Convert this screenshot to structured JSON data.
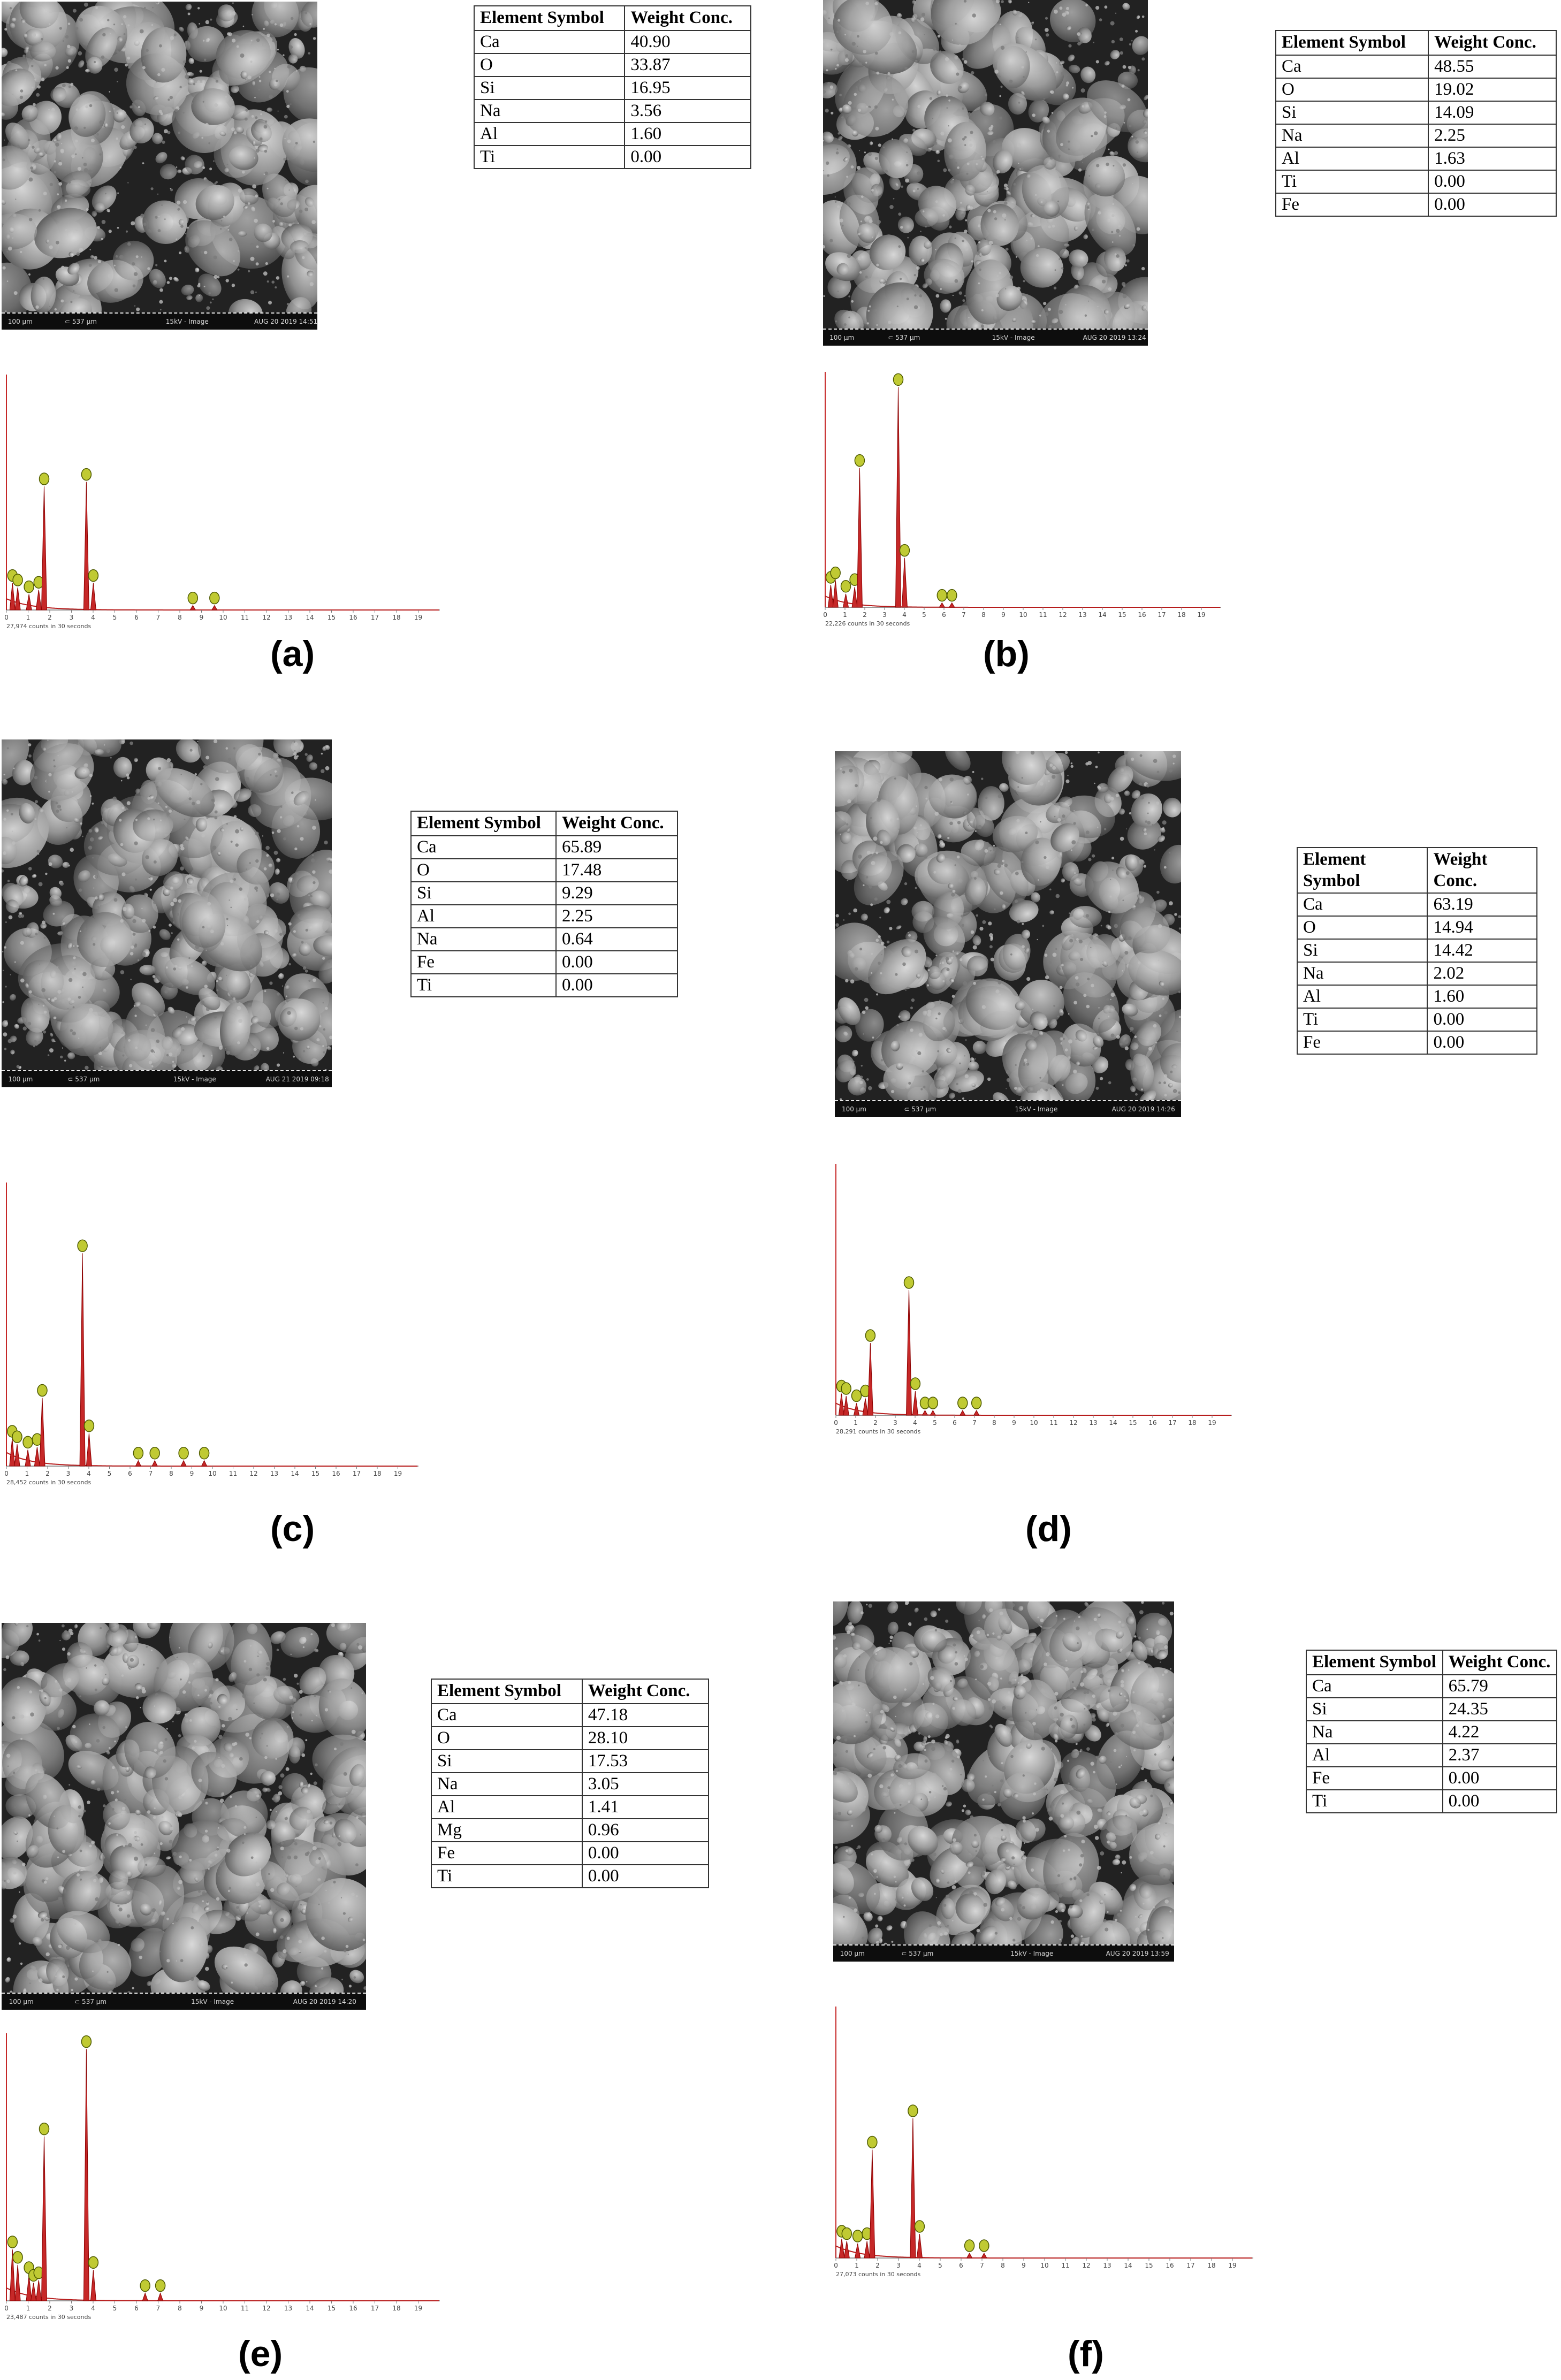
{
  "panels": [
    {
      "id": "a",
      "caption": "(a)",
      "table": {
        "headers": [
          "Element Symbol",
          "Weight Conc."
        ],
        "rows": [
          [
            "Ca",
            "40.90"
          ],
          [
            "O",
            "33.87"
          ],
          [
            "Si",
            "16.95"
          ],
          [
            "Na",
            "3.56"
          ],
          [
            "Al",
            "1.60"
          ],
          [
            "Ti",
            "0.00"
          ]
        ]
      },
      "sem": {
        "scale": "100 µm",
        "stage": "⊂ 537 µm",
        "mode": "15kV - Image",
        "date": "AUG 20 2019 14:51"
      },
      "edx": {
        "footer": "27,974 counts in 30 seconds",
        "ticks": [
          "0",
          "1",
          "2",
          "3",
          "4",
          "5",
          "6",
          "7",
          "8",
          "9",
          "10",
          "11",
          "12",
          "13",
          "14",
          "15",
          "16",
          "17",
          "18",
          "19"
        ]
      }
    },
    {
      "id": "b",
      "caption": "(b)",
      "table": {
        "headers": [
          "Element Symbol",
          "Weight Conc."
        ],
        "rows": [
          [
            "Ca",
            "48.55"
          ],
          [
            "O",
            "19.02"
          ],
          [
            "Si",
            "14.09"
          ],
          [
            "Na",
            "2.25"
          ],
          [
            "Al",
            "1.63"
          ],
          [
            "Ti",
            "0.00"
          ],
          [
            "Fe",
            "0.00"
          ]
        ]
      },
      "sem": {
        "scale": "100 µm",
        "stage": "⊂ 537 µm",
        "mode": "15kV - Image",
        "date": "AUG 20 2019 13:24"
      },
      "edx": {
        "footer": "22,226 counts in 30 seconds",
        "ticks": [
          "0",
          "1",
          "2",
          "3",
          "4",
          "5",
          "6",
          "7",
          "8",
          "9",
          "10",
          "11",
          "12",
          "13",
          "14",
          "15",
          "16",
          "17",
          "18",
          "19"
        ]
      }
    },
    {
      "id": "c",
      "caption": "(c)",
      "table": {
        "headers": [
          "Element Symbol",
          "Weight Conc."
        ],
        "rows": [
          [
            "Ca",
            "65.89"
          ],
          [
            "O",
            "17.48"
          ],
          [
            "Si",
            "9.29"
          ],
          [
            "Al",
            "2.25"
          ],
          [
            "Na",
            "0.64"
          ],
          [
            "Fe",
            "0.00"
          ],
          [
            "Ti",
            "0.00"
          ]
        ]
      },
      "sem": {
        "scale": "100 µm",
        "stage": "⊂ 537 µm",
        "mode": "15kV - Image",
        "date": "AUG 21 2019 09:18"
      },
      "edx": {
        "footer": "28,452 counts in 30 seconds",
        "ticks": [
          "0",
          "1",
          "2",
          "3",
          "4",
          "5",
          "6",
          "7",
          "8",
          "9",
          "10",
          "11",
          "12",
          "13",
          "14",
          "15",
          "16",
          "17",
          "18",
          "19"
        ]
      }
    },
    {
      "id": "d",
      "caption": "(d)",
      "table": {
        "headers": [
          "Element Symbol",
          "Weight Conc."
        ],
        "rows": [
          [
            "Ca",
            "63.19"
          ],
          [
            "O",
            "14.94"
          ],
          [
            "Si",
            "14.42"
          ],
          [
            "Na",
            "2.02"
          ],
          [
            "Al",
            "1.60"
          ],
          [
            "Ti",
            "0.00"
          ],
          [
            "Fe",
            "0.00"
          ]
        ]
      },
      "sem": {
        "scale": "100 µm",
        "stage": "⊂ 537 µm",
        "mode": "15kV - Image",
        "date": "AUG 20 2019 14:26"
      },
      "edx": {
        "footer": "28,291 counts in 30 seconds",
        "ticks": [
          "0",
          "1",
          "2",
          "3",
          "4",
          "5",
          "6",
          "7",
          "8",
          "9",
          "10",
          "11",
          "12",
          "13",
          "14",
          "15",
          "16",
          "17",
          "18",
          "19"
        ]
      }
    },
    {
      "id": "e",
      "caption": "(e)",
      "table": {
        "headers": [
          "Element Symbol",
          "Weight Conc."
        ],
        "rows": [
          [
            "Ca",
            "47.18"
          ],
          [
            "O",
            "28.10"
          ],
          [
            "Si",
            "17.53"
          ],
          [
            "Na",
            "3.05"
          ],
          [
            "Al",
            "1.41"
          ],
          [
            "Mg",
            "0.96"
          ],
          [
            "Fe",
            "0.00"
          ],
          [
            "Ti",
            "0.00"
          ]
        ]
      },
      "sem": {
        "scale": "100 µm",
        "stage": "⊂ 537 µm",
        "mode": "15kV - Image",
        "date": "AUG 20 2019 14:20"
      },
      "edx": {
        "footer": "23,487 counts in 30 seconds",
        "ticks": [
          "0",
          "1",
          "2",
          "3",
          "4",
          "5",
          "6",
          "7",
          "8",
          "9",
          "10",
          "11",
          "12",
          "13",
          "14",
          "15",
          "16",
          "17",
          "18",
          "19"
        ]
      }
    },
    {
      "id": "f",
      "caption": "(f)",
      "table": {
        "headers": [
          "Element Symbol",
          "Weight Conc."
        ],
        "rows": [
          [
            "Ca",
            "65.79"
          ],
          [
            "Si",
            "24.35"
          ],
          [
            "Na",
            "4.22"
          ],
          [
            "Al",
            "2.37"
          ],
          [
            "Fe",
            "0.00"
          ],
          [
            "Ti",
            "0.00"
          ]
        ]
      },
      "sem": {
        "scale": "100 µm",
        "stage": "⊂ 537 µm",
        "mode": "15kV - Image",
        "date": "AUG 20 2019 13:59"
      },
      "edx": {
        "footer": "27,073 counts in 30 seconds",
        "ticks": [
          "0",
          "1",
          "2",
          "3",
          "4",
          "5",
          "6",
          "7",
          "8",
          "9",
          "10",
          "11",
          "12",
          "13",
          "14",
          "15",
          "16",
          "17",
          "18",
          "19"
        ]
      }
    }
  ],
  "chart_data": [
    {
      "type": "bar",
      "panel": "a",
      "x_unit": "keV",
      "xlim": [
        0,
        20
      ],
      "peaks_keV": [
        0.28,
        0.52,
        1.04,
        1.49,
        1.74,
        3.69,
        4.01,
        8.6,
        9.6
      ],
      "peak_relative_heights": [
        0.12,
        0.1,
        0.07,
        0.09,
        0.55,
        0.57,
        0.12,
        0.02,
        0.02
      ]
    },
    {
      "type": "bar",
      "panel": "b",
      "x_unit": "keV",
      "xlim": [
        0,
        20
      ],
      "peaks_keV": [
        0.28,
        0.52,
        1.04,
        1.49,
        1.74,
        3.69,
        4.01,
        5.9,
        6.4
      ],
      "peak_relative_heights": [
        0.1,
        0.12,
        0.06,
        0.09,
        0.62,
        0.98,
        0.22,
        0.02,
        0.02
      ]
    },
    {
      "type": "bar",
      "panel": "c",
      "x_unit": "keV",
      "xlim": [
        0,
        20
      ],
      "peaks_keV": [
        0.28,
        0.52,
        1.04,
        1.49,
        1.74,
        3.69,
        4.01,
        6.4,
        7.2,
        8.6,
        9.6
      ],
      "peak_relative_heights": [
        0.1,
        0.08,
        0.06,
        0.07,
        0.25,
        0.78,
        0.12,
        0.02,
        0.02,
        0.02,
        0.02
      ]
    },
    {
      "type": "bar",
      "panel": "d",
      "x_unit": "keV",
      "xlim": [
        0,
        20
      ],
      "peaks_keV": [
        0.28,
        0.52,
        1.04,
        1.49,
        1.74,
        3.69,
        4.01,
        4.5,
        4.9,
        6.4,
        7.1
      ],
      "peak_relative_heights": [
        0.09,
        0.08,
        0.05,
        0.07,
        0.3,
        0.52,
        0.1,
        0.02,
        0.02,
        0.02,
        0.02
      ]
    },
    {
      "type": "bar",
      "panel": "e",
      "x_unit": "keV",
      "xlim": [
        0,
        20
      ],
      "peaks_keV": [
        0.28,
        0.52,
        1.04,
        1.25,
        1.49,
        1.74,
        3.69,
        4.01,
        6.4,
        7.1
      ],
      "peak_relative_heights": [
        0.2,
        0.14,
        0.1,
        0.07,
        0.08,
        0.64,
        0.98,
        0.12,
        0.03,
        0.03
      ]
    },
    {
      "type": "bar",
      "panel": "f",
      "x_unit": "keV",
      "xlim": [
        0,
        20
      ],
      "peaks_keV": [
        0.28,
        0.52,
        1.04,
        1.49,
        1.74,
        3.69,
        4.01,
        6.4,
        7.1
      ],
      "peak_relative_heights": [
        0.08,
        0.07,
        0.06,
        0.07,
        0.45,
        0.58,
        0.1,
        0.02,
        0.02
      ]
    }
  ]
}
